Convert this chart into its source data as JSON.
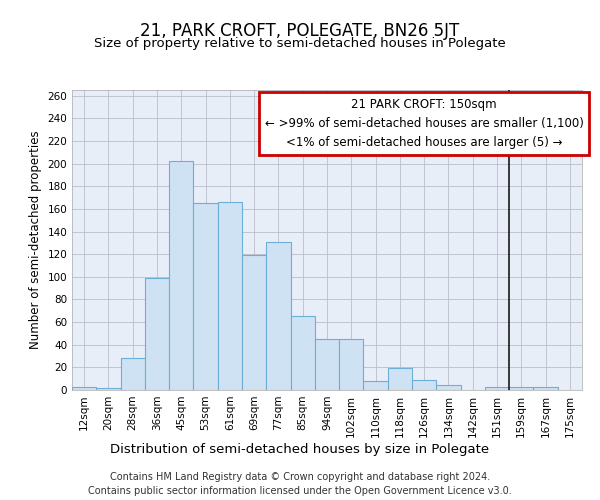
{
  "title": "21, PARK CROFT, POLEGATE, BN26 5JT",
  "subtitle": "Size of property relative to semi-detached houses in Polegate",
  "xlabel": "Distribution of semi-detached houses by size in Polegate",
  "ylabel": "Number of semi-detached properties",
  "footer_line1": "Contains HM Land Registry data © Crown copyright and database right 2024.",
  "footer_line2": "Contains public sector information licensed under the Open Government Licence v3.0.",
  "bar_labels": [
    "12sqm",
    "20sqm",
    "28sqm",
    "36sqm",
    "45sqm",
    "53sqm",
    "61sqm",
    "69sqm",
    "77sqm",
    "85sqm",
    "94sqm",
    "102sqm",
    "110sqm",
    "118sqm",
    "126sqm",
    "134sqm",
    "142sqm",
    "151sqm",
    "159sqm",
    "167sqm",
    "175sqm"
  ],
  "bar_values": [
    3,
    2,
    28,
    99,
    202,
    165,
    166,
    119,
    131,
    65,
    45,
    45,
    8,
    19,
    9,
    4,
    0,
    3,
    3,
    3,
    0
  ],
  "bar_color": "#cfe2f3",
  "bar_edge_color": "#6baed6",
  "bar_edge_width": 0.8,
  "vline_index": 17,
  "vline_color": "#1a1a1a",
  "annotation_title": "21 PARK CROFT: 150sqm",
  "annotation_line1": "← >99% of semi-detached houses are smaller (1,100)",
  "annotation_line2": "<1% of semi-detached houses are larger (5) →",
  "annotation_box_edgecolor": "#cc0000",
  "annotation_box_facecolor": "#ffffff",
  "ylim": [
    0,
    265
  ],
  "yticks": [
    0,
    20,
    40,
    60,
    80,
    100,
    120,
    140,
    160,
    180,
    200,
    220,
    240,
    260
  ],
  "title_fontsize": 12,
  "subtitle_fontsize": 9.5,
  "xlabel_fontsize": 9.5,
  "ylabel_fontsize": 8.5,
  "tick_fontsize": 7.5,
  "annotation_fontsize": 8.5,
  "footer_fontsize": 7,
  "background_color": "#ffffff",
  "plot_bg_color": "#e8eef8",
  "grid_color": "#bbbbcc"
}
